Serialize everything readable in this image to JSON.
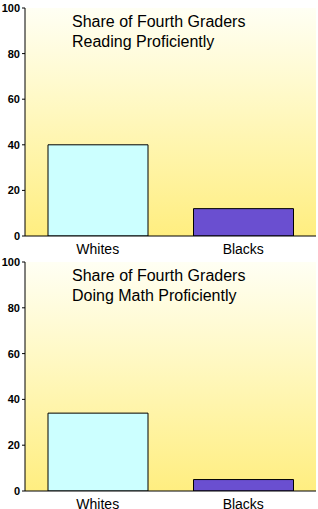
{
  "chart_data": [
    {
      "type": "bar",
      "title": "Share of Fourth Graders\nReading Proficiently",
      "categories": [
        "Whites",
        "Blacks"
      ],
      "values": [
        40,
        12
      ],
      "colors": [
        "#ccffff",
        "#6a4fd0"
      ],
      "ylim": [
        0,
        100
      ],
      "yticks": [
        0,
        20,
        40,
        60,
        80,
        100
      ],
      "grid": false
    },
    {
      "type": "bar",
      "title": "Share of Fourth Graders\nDoing Math Proficiently",
      "categories": [
        "Whites",
        "Blacks"
      ],
      "values": [
        34,
        5
      ],
      "colors": [
        "#ccffff",
        "#6a4fd0"
      ],
      "ylim": [
        0,
        100
      ],
      "yticks": [
        0,
        20,
        40,
        60,
        80,
        100
      ],
      "grid": false
    }
  ]
}
